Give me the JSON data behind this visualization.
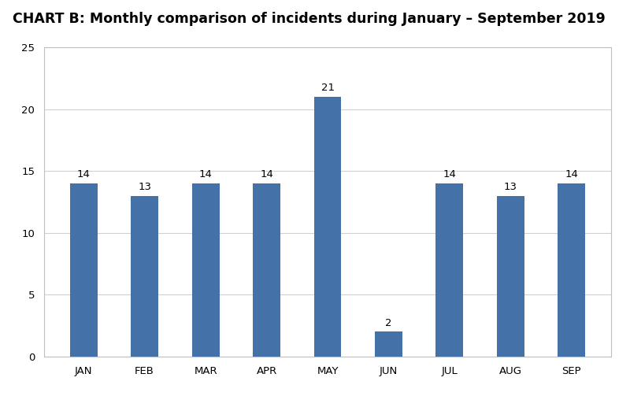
{
  "title": "CHART B: Monthly comparison of incidents during January – September 2019",
  "categories": [
    "JAN",
    "FEB",
    "MAR",
    "APR",
    "MAY",
    "JUN",
    "JUL",
    "AUG",
    "SEP"
  ],
  "values": [
    14,
    13,
    14,
    14,
    21,
    2,
    14,
    13,
    14
  ],
  "bar_color": "#4472a8",
  "ylim": [
    0,
    25
  ],
  "yticks": [
    0,
    5,
    10,
    15,
    20,
    25
  ],
  "title_fontsize": 12.5,
  "tick_fontsize": 9.5,
  "value_label_fontsize": 9.5,
  "background_color": "#ffffff",
  "plot_bg_color": "#ffffff",
  "grid_color": "#d0d0d0",
  "bar_width": 0.45,
  "box_color": "#bfbfbf"
}
